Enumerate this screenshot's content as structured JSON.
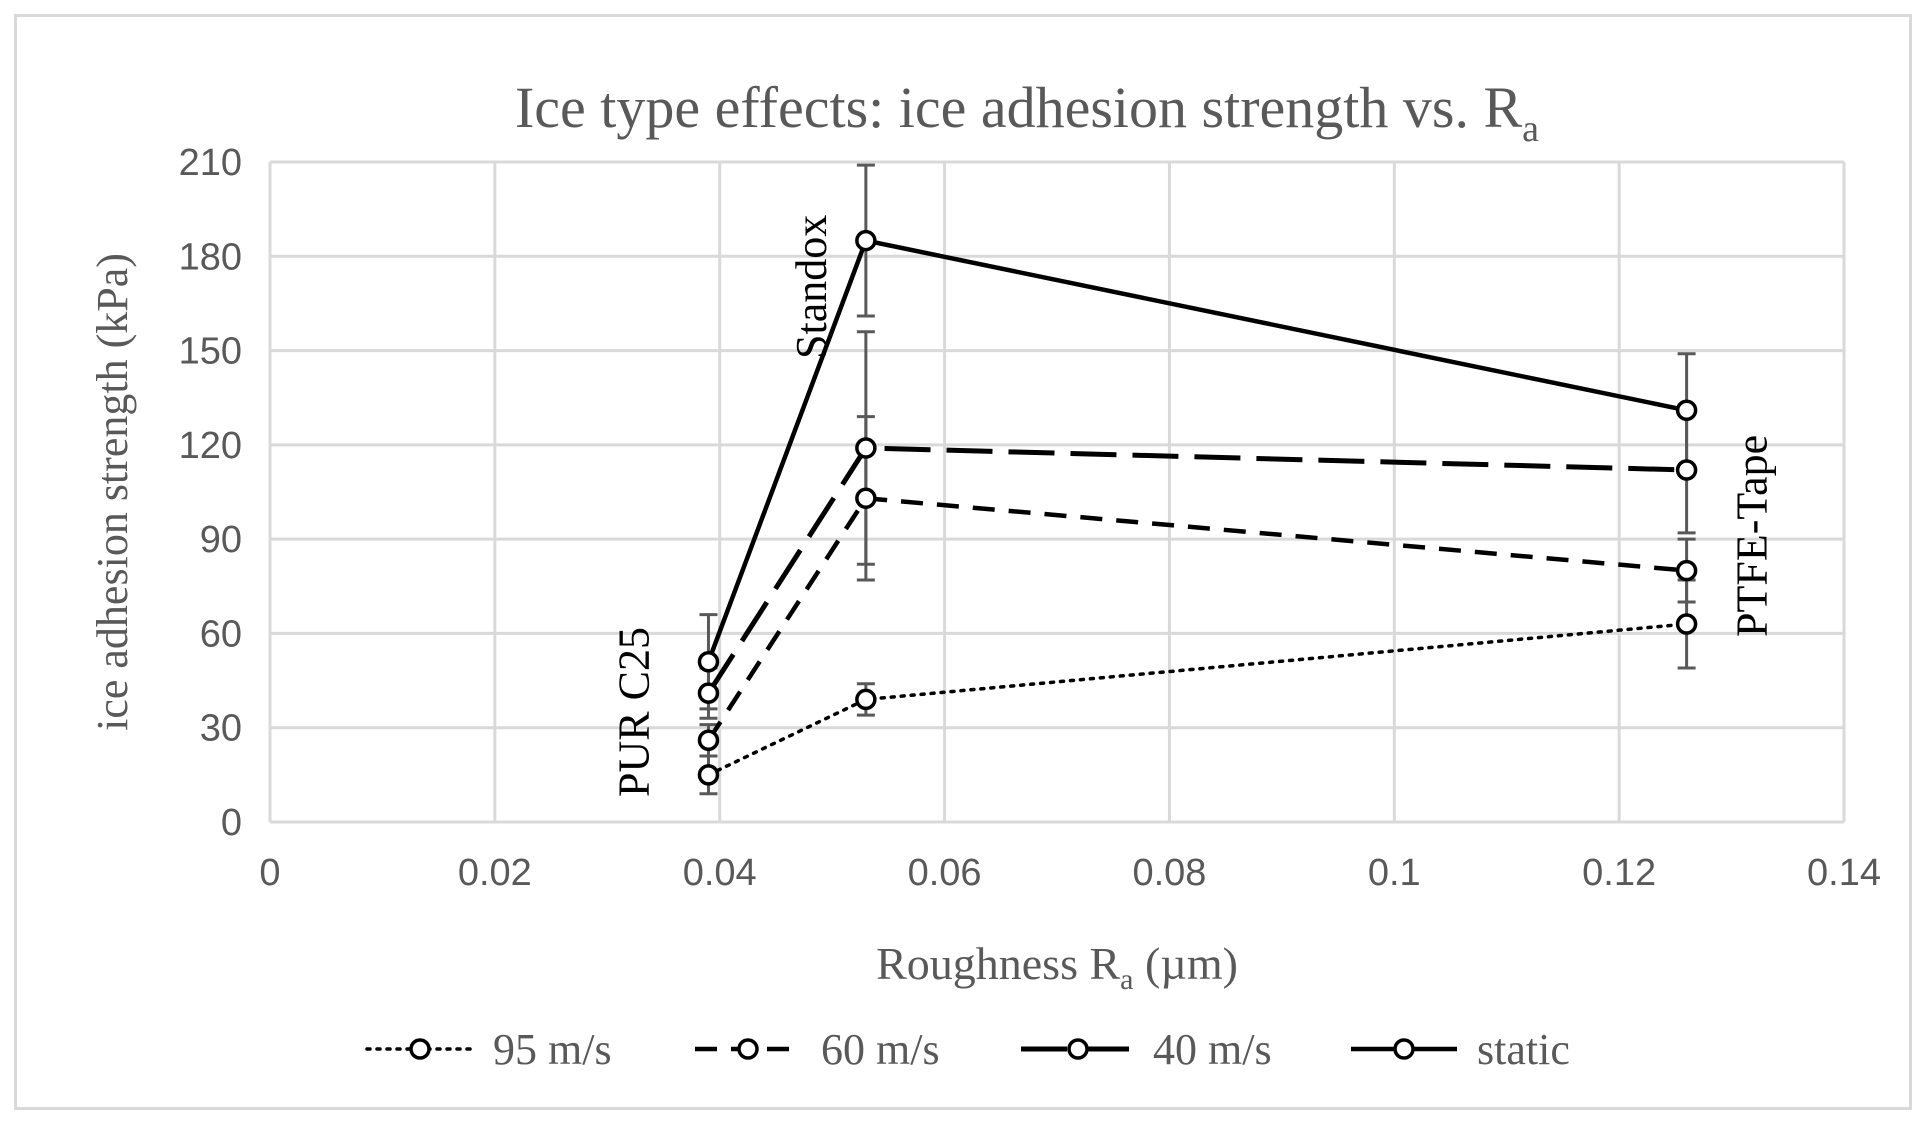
{
  "chart_data": {
    "type": "line",
    "title": {
      "main": "Ice type effects: ice adhesion strength vs. R",
      "sub": "a"
    },
    "xlabel": {
      "main": "Roughness R",
      "sub": "a",
      "suffix": " (µm)"
    },
    "ylabel": "ice adhesion strength (kPa)",
    "xlim": [
      0,
      0.14
    ],
    "ylim": [
      0,
      210
    ],
    "x_ticks": [
      0,
      0.02,
      0.04,
      0.06,
      0.08,
      0.1,
      0.12,
      0.14
    ],
    "y_ticks": [
      0,
      30,
      60,
      90,
      120,
      150,
      180,
      210
    ],
    "x_tick_labels": [
      "0",
      "0.02",
      "0.04",
      "0.06",
      "0.08",
      "0.1",
      "0.12",
      "0.14"
    ],
    "y_tick_labels": [
      "0",
      "30",
      "60",
      "90",
      "120",
      "150",
      "180",
      "210"
    ],
    "grid": true,
    "legend_position": "bottom",
    "series": [
      {
        "name": "95 m/s",
        "style": "dotted",
        "x": [
          0.039,
          0.053,
          0.126
        ],
        "y": [
          15,
          39,
          63
        ],
        "err": [
          6,
          5,
          14
        ]
      },
      {
        "name": "60 m/s",
        "style": "short-dash",
        "x": [
          0.039,
          0.053,
          0.126
        ],
        "y": [
          26,
          103,
          80
        ],
        "err": [
          5,
          26,
          10
        ]
      },
      {
        "name": "40 m/s",
        "style": "long-dash",
        "x": [
          0.039,
          0.053,
          0.126
        ],
        "y": [
          41,
          119,
          112
        ],
        "err": [
          8,
          37,
          20
        ]
      },
      {
        "name": "static",
        "style": "solid",
        "x": [
          0.039,
          0.053,
          0.126
        ],
        "y": [
          51,
          185,
          131
        ],
        "err": [
          15,
          24,
          18
        ]
      }
    ],
    "annotations": [
      {
        "text": "PUR C25",
        "x": 0.039,
        "y": 15
      },
      {
        "text": "Standox",
        "x": 0.053,
        "y": 185
      },
      {
        "text": "PTFE-Tape",
        "x": 0.126,
        "y": 112
      }
    ],
    "colors": {
      "lines": "#000000",
      "grid": "#d9d9d9",
      "text": "#595959",
      "errorbar": "#595959"
    }
  }
}
